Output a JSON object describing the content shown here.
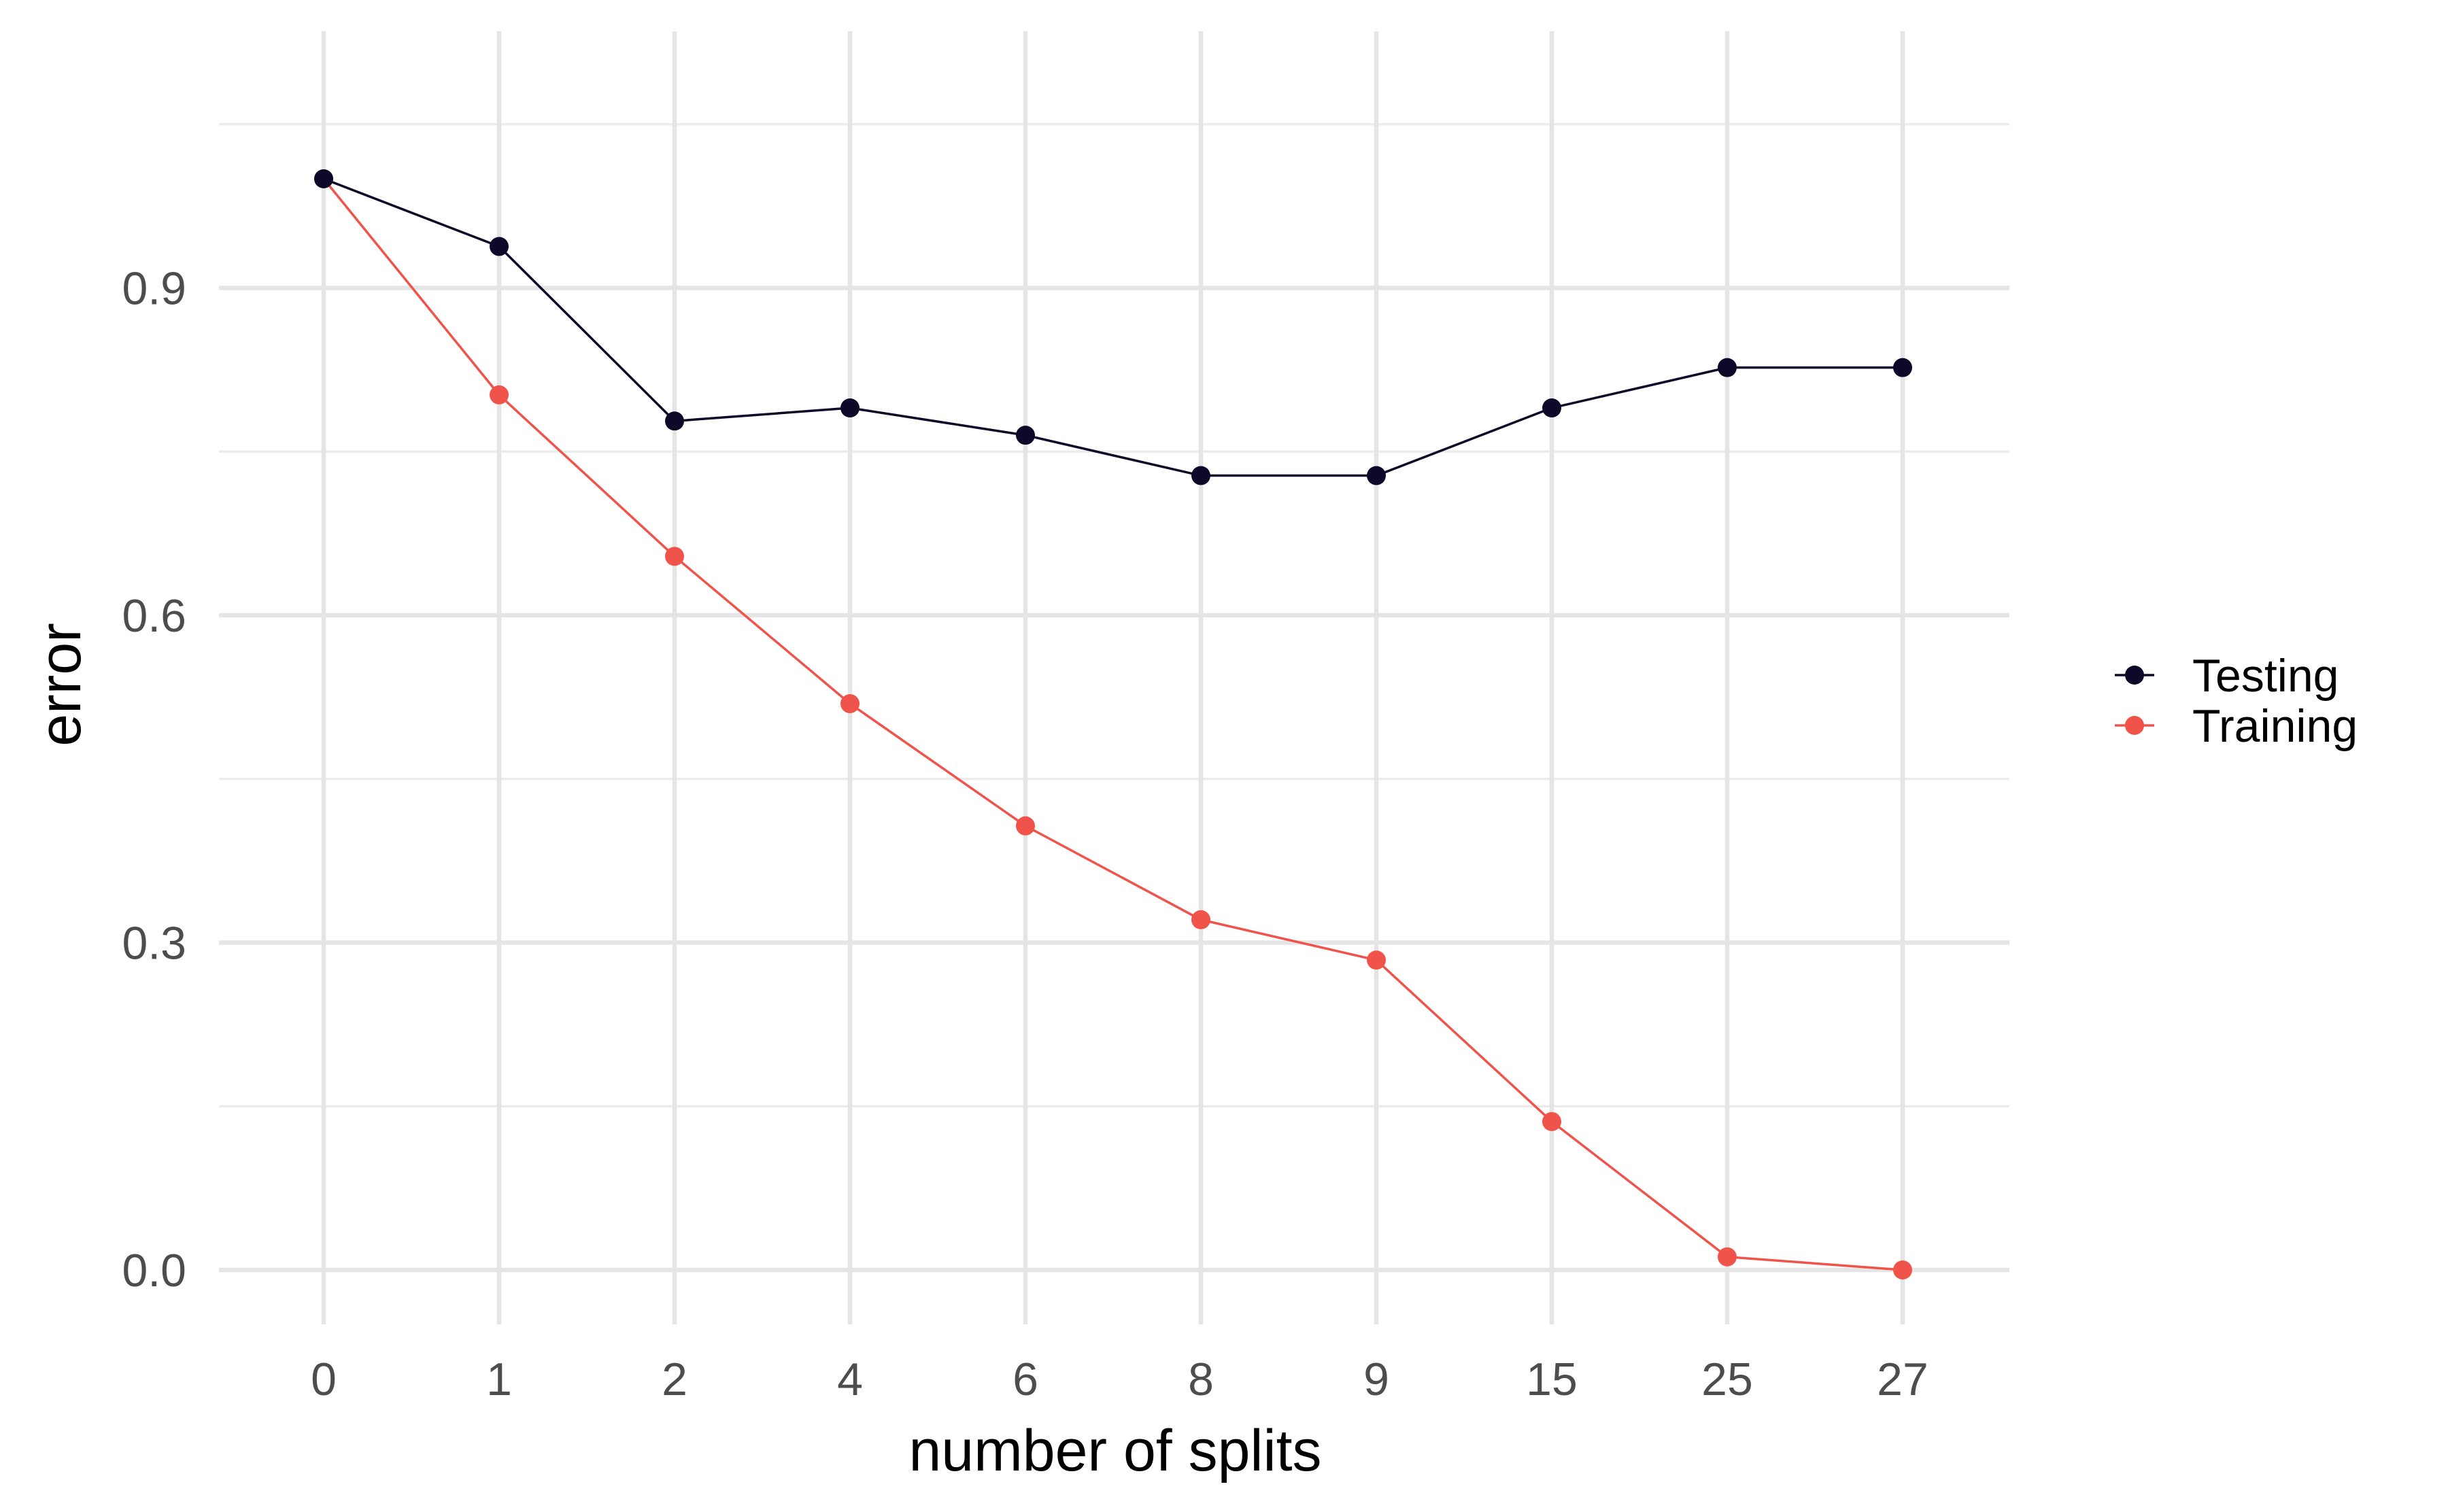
{
  "chart_data": {
    "type": "line",
    "categories": [
      "0",
      "1",
      "2",
      "4",
      "6",
      "8",
      "9",
      "15",
      "25",
      "27"
    ],
    "series": [
      {
        "name": "Testing",
        "color": "#0d0a29",
        "values": [
          1.0,
          0.938,
          0.778,
          0.79,
          0.765,
          0.728,
          0.728,
          0.79,
          0.827,
          0.827
        ]
      },
      {
        "name": "Training",
        "color": "#f0534a",
        "values": [
          1.0,
          0.802,
          0.654,
          0.519,
          0.407,
          0.321,
          0.284,
          0.136,
          0.012,
          0.0
        ]
      }
    ],
    "xlabel": "number of splits",
    "ylabel": "error",
    "ylim": [
      -0.05,
      1.05
    ],
    "yticks": [
      "0.0",
      "0.3",
      "0.6",
      "0.9"
    ],
    "ytick_values": [
      0.0,
      0.3,
      0.6,
      0.9
    ],
    "yminor_values": [
      0.15,
      0.45,
      0.75,
      1.05
    ],
    "grid": true,
    "legend_position": "right"
  }
}
